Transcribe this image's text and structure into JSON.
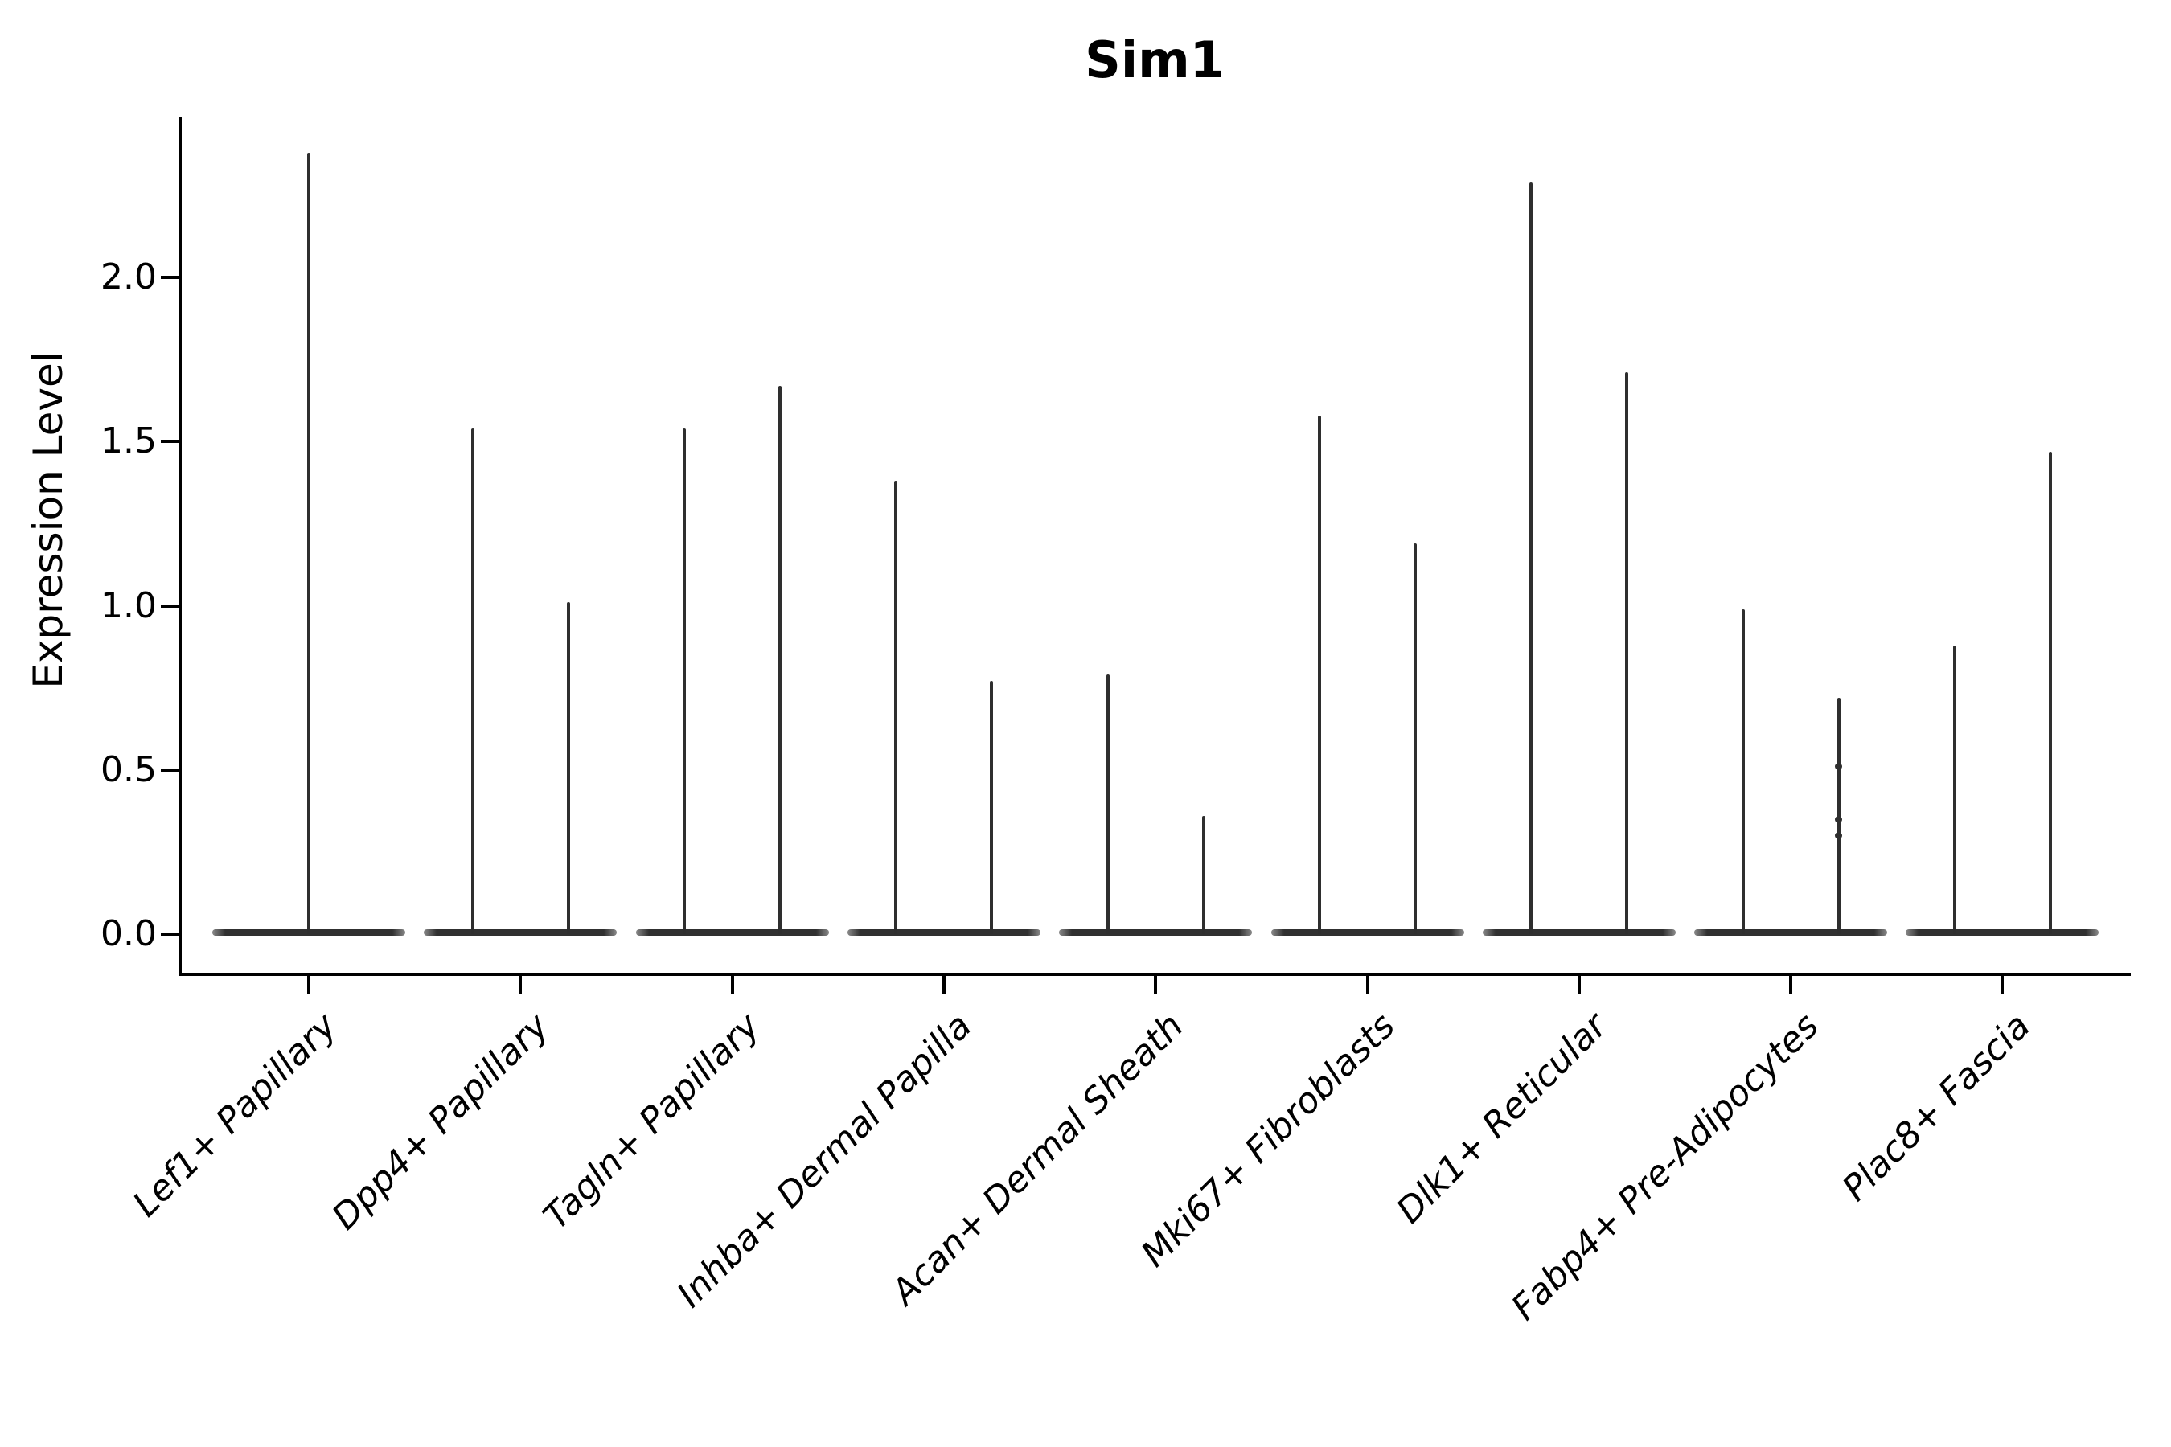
{
  "title": "Sim1",
  "axes": {
    "ylabel": "Expression Level",
    "ytick_labels": [
      "0.0",
      "0.5",
      "1.0",
      "1.5",
      "2.0"
    ],
    "ytick_values": [
      0.0,
      0.5,
      1.0,
      1.5,
      2.0
    ]
  },
  "colors": {
    "violin": "#2e2e2e",
    "axis": "#000000",
    "text": "#000000",
    "background": "#ffffff"
  },
  "chart_data": {
    "type": "violin",
    "title": "Sim1",
    "xlabel": "",
    "ylabel": "Expression Level",
    "ylim": [
      -0.12,
      2.49
    ],
    "grid": false,
    "legend": "none",
    "categories": [
      "Lef1+ Papillary",
      "Dpp4+ Papillary",
      "Tagln+ Papillary",
      "Inhba+ Dermal Papilla",
      "Acan+ Dermal Sheath",
      "Mki67+ Fibroblasts",
      "Dlk1+ Reticular",
      "Fabp4+ Pre-Adipocytes",
      "Plac8+ Fascia"
    ],
    "violins": [
      {
        "category": "Lef1+ Papillary",
        "peaks": [
          2.38
        ]
      },
      {
        "category": "Dpp4+ Papillary",
        "peaks": [
          1.54,
          1.01
        ]
      },
      {
        "category": "Tagln+ Papillary",
        "peaks": [
          1.54,
          1.67
        ]
      },
      {
        "category": "Inhba+ Dermal Papilla",
        "peaks": [
          1.38,
          0.77
        ]
      },
      {
        "category": "Acan+ Dermal Sheath",
        "peaks": [
          0.79,
          0.36
        ]
      },
      {
        "category": "Mki67+ Fibroblasts",
        "peaks": [
          1.58,
          1.19
        ]
      },
      {
        "category": "Dlk1+ Reticular",
        "peaks": [
          2.29,
          1.71
        ]
      },
      {
        "category": "Fabp4+ Pre-Adipocytes",
        "peaks": [
          0.99,
          0.72
        ]
      },
      {
        "category": "Plac8+ Fascia",
        "peaks": [
          0.88,
          1.47
        ]
      }
    ],
    "bulge_points": [
      {
        "category": "Fabp4+ Pre-Adipocytes",
        "violin_index": 1,
        "values": [
          0.51,
          0.35,
          0.3
        ]
      }
    ],
    "description": "Violin plot of Sim1 expression; near-zero density base with thin spikes up to per-violin max expression. First category has a single centered violin, all others have two."
  }
}
